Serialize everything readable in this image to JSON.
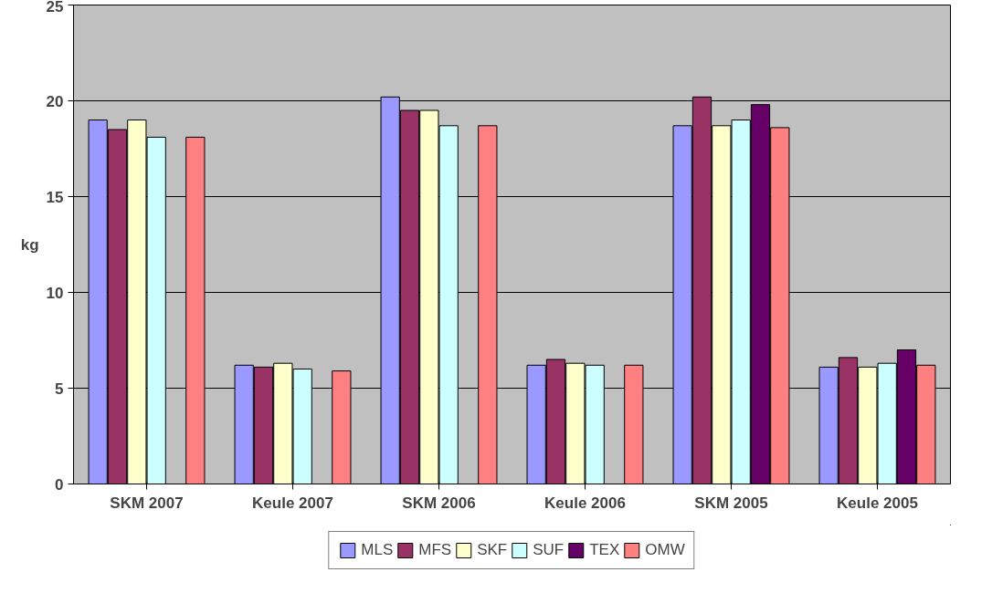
{
  "chart_data": {
    "type": "bar",
    "ylabel": "kg",
    "categories": [
      "SKM 2007",
      "Keule 2007",
      "SKM 2006",
      "Keule 2006",
      "SKM 2005",
      "Keule 2005"
    ],
    "series": [
      {
        "name": "MLS",
        "color": "#9999ff",
        "values": [
          19.0,
          6.2,
          20.2,
          6.2,
          18.7,
          6.1
        ]
      },
      {
        "name": "MFS",
        "color": "#993366",
        "values": [
          18.5,
          6.1,
          19.5,
          6.5,
          20.2,
          6.6
        ]
      },
      {
        "name": "SKF",
        "color": "#ffffcc",
        "values": [
          19.0,
          6.3,
          19.5,
          6.3,
          18.7,
          6.1
        ]
      },
      {
        "name": "SUF",
        "color": "#ccffff",
        "values": [
          18.1,
          6.0,
          18.7,
          6.2,
          19.0,
          6.3
        ]
      },
      {
        "name": "TEX",
        "color": "#660066",
        "values": [
          null,
          null,
          null,
          null,
          19.8,
          7.0
        ]
      },
      {
        "name": "OMW",
        "color": "#ff8080",
        "values": [
          18.1,
          5.9,
          18.7,
          6.2,
          18.6,
          6.2
        ]
      }
    ],
    "ylim": [
      0,
      25
    ],
    "yticks": [
      0,
      5,
      10,
      15,
      20,
      25
    ],
    "grid": "y",
    "legend": "bottom"
  }
}
